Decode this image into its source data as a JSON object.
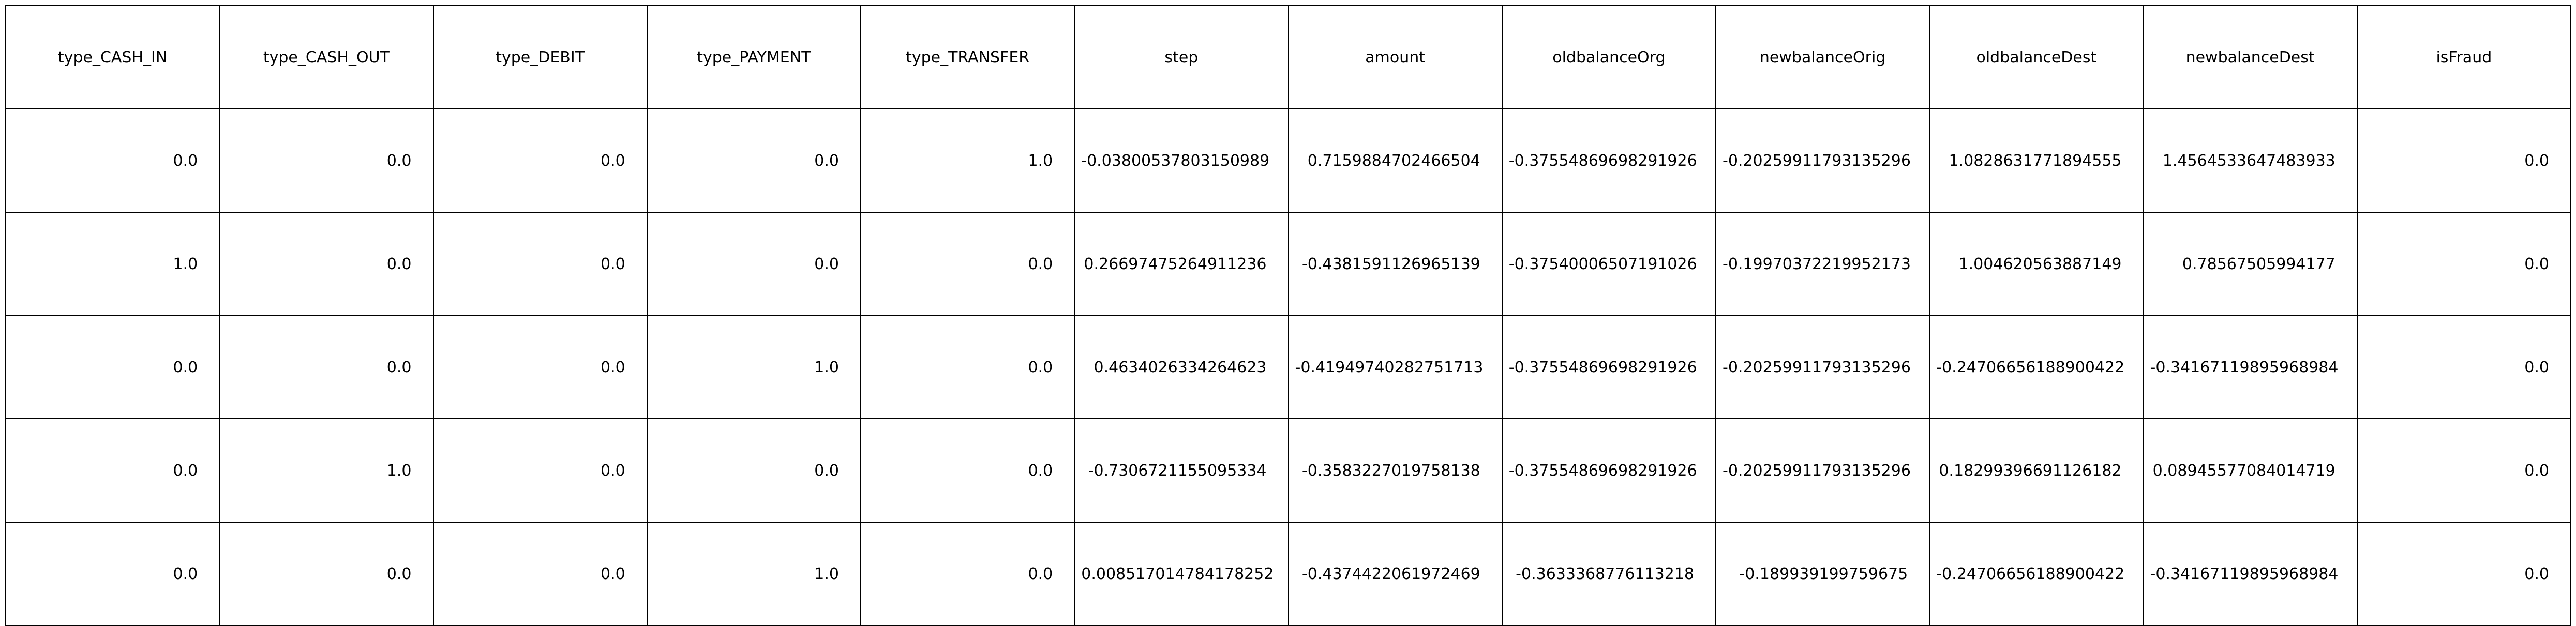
{
  "table": {
    "columns": [
      "type_CASH_IN",
      "type_CASH_OUT",
      "type_DEBIT",
      "type_PAYMENT",
      "type_TRANSFER",
      "step",
      "amount",
      "oldbalanceOrg",
      "newbalanceOrig",
      "oldbalanceDest",
      "newbalanceDest",
      "isFraud"
    ],
    "rows": [
      [
        "0.0",
        "0.0",
        "0.0",
        "0.0",
        "1.0",
        "-0.03800537803150989",
        "0.7159884702466504",
        "-0.37554869698291926",
        "-0.20259911793135296",
        "1.0828631771894555",
        "1.4564533647483933",
        "0.0"
      ],
      [
        "1.0",
        "0.0",
        "0.0",
        "0.0",
        "0.0",
        "0.26697475264911236",
        "-0.4381591126965139",
        "-0.37540006507191026",
        "-0.19970372219952173",
        "1.004620563887149",
        "0.78567505994177",
        "0.0"
      ],
      [
        "0.0",
        "0.0",
        "0.0",
        "1.0",
        "0.0",
        "0.4634026334264623",
        "-0.41949740282751713",
        "-0.37554869698291926",
        "-0.20259911793135296",
        "-0.24706656188900422",
        "-0.34167119895968984",
        "0.0"
      ],
      [
        "0.0",
        "1.0",
        "0.0",
        "0.0",
        "0.0",
        "-0.7306721155095334",
        "-0.3583227019758138",
        "-0.37554869698291926",
        "-0.20259911793135296",
        "0.18299396691126182",
        "0.08945577084014719",
        "0.0"
      ],
      [
        "0.0",
        "0.0",
        "0.0",
        "1.0",
        "0.0",
        "0.008517014784178252",
        "-0.4374422061972469",
        "-0.3633368776113218",
        "-0.189939199759675",
        "-0.24706656188900422",
        "-0.34167119895968984",
        "0.0"
      ]
    ]
  }
}
